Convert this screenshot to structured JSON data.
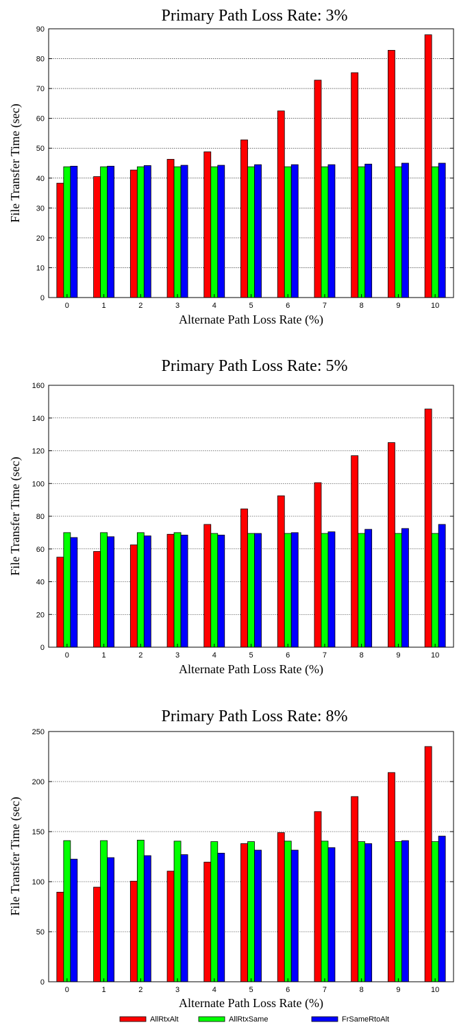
{
  "chart_data": [
    {
      "type": "bar",
      "title": "Primary Path Loss Rate: 3%",
      "xlabel": "Alternate Path Loss Rate (%)",
      "ylabel": "File Transfer Time (sec)",
      "ylim": [
        0,
        90
      ],
      "yticks": [
        "0",
        "10",
        "20",
        "30",
        "40",
        "50",
        "60",
        "70",
        "80",
        "90"
      ],
      "categories": [
        "0",
        "1",
        "2",
        "3",
        "4",
        "5",
        "6",
        "7",
        "8",
        "9",
        "10"
      ],
      "grid": "horizontal dotted",
      "series": [
        {
          "name": "AllRtxAlt",
          "values": [
            38.3,
            40.5,
            42.7,
            46.3,
            48.8,
            52.8,
            62.5,
            72.8,
            75.3,
            82.8,
            88.0
          ]
        },
        {
          "name": "AllRtxSame",
          "values": [
            43.8,
            43.8,
            43.8,
            43.8,
            43.8,
            43.8,
            43.8,
            43.8,
            43.8,
            43.8,
            43.8
          ]
        },
        {
          "name": "FrSameRtoAlt",
          "values": [
            44.0,
            44.0,
            44.2,
            44.3,
            44.3,
            44.5,
            44.5,
            44.5,
            44.7,
            45.0,
            45.0
          ]
        }
      ]
    },
    {
      "type": "bar",
      "title": "Primary Path Loss Rate: 5%",
      "xlabel": "Alternate Path Loss Rate (%)",
      "ylabel": "File Transfer Time (sec)",
      "ylim": [
        0,
        160
      ],
      "yticks": [
        "0",
        "20",
        "40",
        "60",
        "80",
        "100",
        "120",
        "140",
        "160"
      ],
      "categories": [
        "0",
        "1",
        "2",
        "3",
        "4",
        "5",
        "6",
        "7",
        "8",
        "9",
        "10"
      ],
      "grid": "horizontal dotted",
      "series": [
        {
          "name": "AllRtxAlt",
          "values": [
            55,
            58.5,
            62.5,
            69,
            75,
            84.5,
            92.5,
            100.5,
            117,
            125,
            145.5
          ]
        },
        {
          "name": "AllRtxSame",
          "values": [
            70,
            70,
            70,
            70,
            69.5,
            69.5,
            69.5,
            69.5,
            69.5,
            69.5,
            69.5
          ]
        },
        {
          "name": "FrSameRtoAlt",
          "values": [
            67,
            67.5,
            68,
            68.5,
            68.5,
            69.5,
            70,
            70.5,
            72,
            72.5,
            75
          ]
        }
      ]
    },
    {
      "type": "bar",
      "title": "Primary Path Loss Rate: 8%",
      "xlabel": "Alternate Path Loss Rate (%)",
      "ylabel": "File Transfer Time (sec)",
      "ylim": [
        0,
        250
      ],
      "yticks": [
        "0",
        "50",
        "100",
        "150",
        "200",
        "250"
      ],
      "categories": [
        "0",
        "1",
        "2",
        "3",
        "4",
        "5",
        "6",
        "7",
        "8",
        "9",
        "10"
      ],
      "grid": "horizontal dotted",
      "series": [
        {
          "name": "AllRtxAlt",
          "values": [
            89.5,
            94.5,
            100.5,
            110.5,
            119.5,
            138,
            149,
            170,
            185,
            209,
            235
          ]
        },
        {
          "name": "AllRtxSame",
          "values": [
            141,
            141,
            141.5,
            140.5,
            140,
            140,
            140.5,
            140.5,
            140,
            140,
            140
          ]
        },
        {
          "name": "FrSameRtoAlt",
          "values": [
            122.5,
            124,
            126,
            127,
            128.5,
            131.5,
            131.5,
            134,
            138,
            141,
            145.5
          ]
        }
      ]
    }
  ],
  "legend": {
    "placement": "bottom",
    "items": [
      {
        "name": "AllRtxAlt",
        "color": "#ff0000"
      },
      {
        "name": "AllRtxSame",
        "color": "#00ff00"
      },
      {
        "name": "FrSameRtoAlt",
        "color": "#0000ff"
      }
    ]
  },
  "colors": {
    "AllRtxAlt": "#ff0000",
    "AllRtxSame": "#00ff00",
    "FrSameRtoAlt": "#0000ff"
  }
}
